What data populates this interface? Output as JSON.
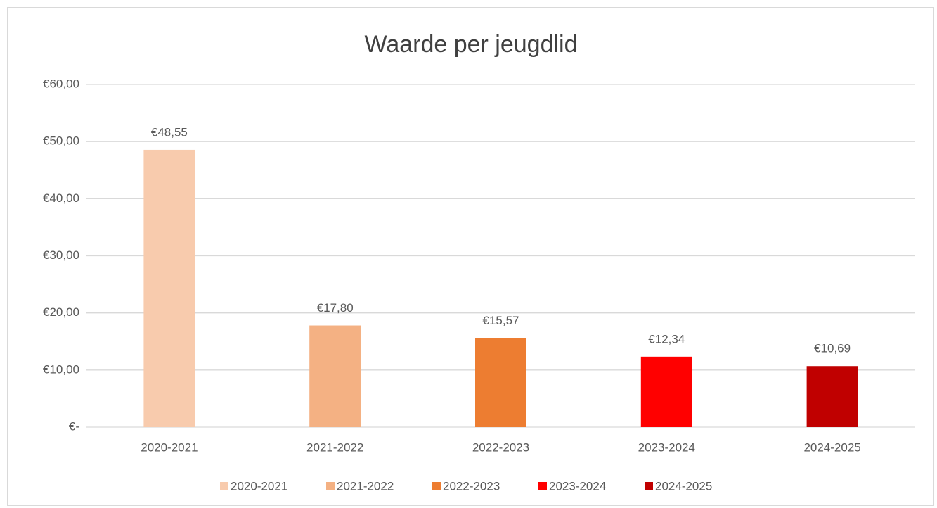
{
  "chart_data": {
    "type": "bar",
    "title": "Waarde per jeugdlid",
    "categories": [
      "2020-2021",
      "2021-2022",
      "2022-2023",
      "2023-2024",
      "2024-2025"
    ],
    "values": [
      48.55,
      17.8,
      15.57,
      12.34,
      10.69
    ],
    "value_labels": [
      "€48,55",
      "€17,80",
      "€15,57",
      "€12,34",
      "€10,69"
    ],
    "colors": [
      "#f8cbad",
      "#f4b183",
      "#ed7d31",
      "#ff0000",
      "#c00000"
    ],
    "ylim": [
      0,
      60
    ],
    "yticks": [
      {
        "value": 0,
        "label": "€-"
      },
      {
        "value": 10,
        "label": "€10,00"
      },
      {
        "value": 20,
        "label": "€20,00"
      },
      {
        "value": 30,
        "label": "€30,00"
      },
      {
        "value": 40,
        "label": "€40,00"
      },
      {
        "value": 50,
        "label": "€50,00"
      },
      {
        "value": 60,
        "label": "€60,00"
      }
    ],
    "grid": true,
    "legend": "bottom"
  }
}
